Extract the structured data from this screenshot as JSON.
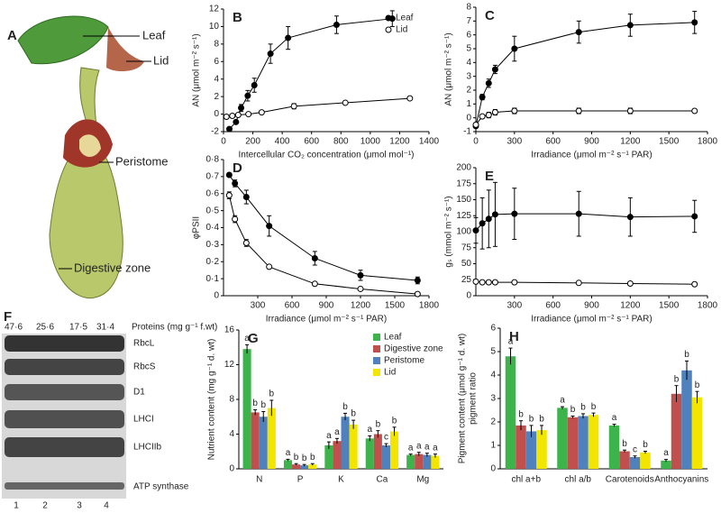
{
  "photo": {
    "panel": "A",
    "labels": [
      "Leaf",
      "Lid",
      "Peristome",
      "Digestive zone"
    ]
  },
  "blot": {
    "panel": "F",
    "loadings": [
      "47·6",
      "25·6",
      "17·5",
      "31·4"
    ],
    "loading_label": "Proteins (mg g⁻¹ f.wt)",
    "proteins": [
      "RbcL",
      "RbcS",
      "D1",
      "LHCI",
      "LHCIIb",
      "ATP synthase"
    ],
    "lanes": [
      "1",
      "2",
      "3",
      "4"
    ]
  },
  "chart_data": [
    {
      "type": "line",
      "panel": "B",
      "x_label": "Intercellular CO₂ concentration (μmol mol⁻¹)",
      "y_label": "AN (μmol m⁻² s⁻¹)",
      "xlim": [
        0,
        1400
      ],
      "xticks": [
        0,
        200,
        400,
        600,
        800,
        1000,
        1200,
        1400
      ],
      "ylim": [
        -2,
        12
      ],
      "yticks": [
        -2,
        0,
        2,
        4,
        6,
        8,
        10,
        12
      ],
      "legend": "upper right",
      "series": [
        {
          "name": "Leaf",
          "color": "#000000",
          "marker": "filled",
          "x": [
            40,
            85,
            120,
            165,
            210,
            320,
            440,
            770,
            1150
          ],
          "values": [
            -1.7,
            -0.9,
            0.7,
            2.1,
            3.3,
            6.9,
            8.7,
            10.2,
            10.9
          ],
          "errors": [
            0.1,
            0.2,
            0.4,
            0.6,
            0.8,
            1.1,
            1.3,
            1.0,
            0.9
          ]
        },
        {
          "name": "Lid",
          "color": "#000000",
          "marker": "open",
          "x": [
            20,
            60,
            100,
            170,
            260,
            480,
            830,
            1270
          ],
          "values": [
            -0.3,
            -0.2,
            -0.1,
            0,
            0.2,
            0.9,
            1.3,
            1.8
          ],
          "errors": [
            0.1,
            0.1,
            0.1,
            0.1,
            0.1,
            0.3,
            0.1,
            0.1
          ]
        }
      ]
    },
    {
      "type": "line",
      "panel": "C",
      "x_label": "Irradiance (μmol m⁻² s⁻¹ PAR)",
      "y_label": "AN (μmol m⁻² s⁻¹)",
      "xlim": [
        0,
        1800
      ],
      "xticks": [
        0,
        300,
        600,
        900,
        1200,
        1500,
        1800
      ],
      "ylim": [
        -1,
        8
      ],
      "yticks": [
        -1,
        0,
        1,
        2,
        3,
        4,
        5,
        6,
        7,
        8
      ],
      "series": [
        {
          "color": "#000000",
          "marker": "filled",
          "x": [
            0,
            50,
            100,
            150,
            300,
            800,
            1200,
            1700
          ],
          "values": [
            -0.6,
            1.5,
            2.5,
            3.5,
            5.0,
            6.2,
            6.7,
            6.9
          ],
          "errors": [
            0.1,
            0.2,
            0.3,
            0.3,
            0.9,
            0.8,
            0.8,
            0.8
          ]
        },
        {
          "color": "#000000",
          "marker": "open",
          "x": [
            0,
            50,
            100,
            150,
            300,
            800,
            1200,
            1700
          ],
          "values": [
            -0.5,
            0.1,
            0.2,
            0.4,
            0.5,
            0.5,
            0.5,
            0.5
          ],
          "errors": [
            0.1,
            0.1,
            0.2,
            0.2,
            0.2,
            0.2,
            0.2,
            0.1
          ]
        }
      ]
    },
    {
      "type": "line",
      "panel": "D",
      "x_label": "Irradiance (μmol m⁻² s⁻¹ PAR)",
      "y_label": "φPSII",
      "xlim": [
        0,
        1800
      ],
      "xticks": [
        300,
        600,
        900,
        1200,
        1500,
        1800
      ],
      "ylim": [
        0,
        0.8
      ],
      "yticks": [
        0,
        {
          "value": 0.1,
          "label": "0·1"
        },
        {
          "value": 0.2,
          "label": "0·2"
        },
        {
          "value": 0.3,
          "label": "0·3"
        },
        {
          "value": 0.4,
          "label": "0·4"
        },
        {
          "value": 0.5,
          "label": "0·5"
        },
        {
          "value": 0.6,
          "label": "0·6"
        },
        {
          "value": 0.7,
          "label": "0·7"
        },
        {
          "value": 0.8,
          "label": "0·8"
        }
      ],
      "series": [
        {
          "color": "#000000",
          "marker": "filled",
          "x": [
            50,
            100,
            200,
            400,
            800,
            1200,
            1700
          ],
          "values": [
            0.71,
            0.66,
            0.58,
            0.41,
            0.22,
            0.12,
            0.09
          ],
          "errors": [
            0.01,
            0.02,
            0.04,
            0.06,
            0.04,
            0.03,
            0.02
          ]
        },
        {
          "color": "#000000",
          "marker": "open",
          "x": [
            50,
            100,
            200,
            400,
            800,
            1200,
            1700
          ],
          "values": [
            0.59,
            0.45,
            0.31,
            0.17,
            0.07,
            0.04,
            0.01
          ],
          "errors": [
            0.02,
            0.02,
            0.02,
            0.01,
            0.01,
            0.01,
            0.01
          ]
        }
      ]
    },
    {
      "type": "line",
      "panel": "E",
      "x_label": "Irradiance (μmol m⁻² s⁻¹ PAR)",
      "y_label": "gₛ (mmol m⁻² s⁻¹)",
      "xlim": [
        0,
        1800
      ],
      "xticks": [
        300,
        600,
        900,
        1200,
        1500,
        1800
      ],
      "ylim": [
        0,
        200
      ],
      "yticks": [
        0,
        25,
        50,
        75,
        100,
        125,
        150,
        175,
        200
      ],
      "series": [
        {
          "color": "#000000",
          "marker": "filled",
          "x": [
            0,
            50,
            100,
            150,
            300,
            800,
            1200,
            1700
          ],
          "values": [
            102,
            113,
            120,
            127,
            128,
            128,
            123,
            124
          ],
          "errors": [
            20,
            40,
            45,
            50,
            40,
            35,
            30,
            25
          ]
        },
        {
          "color": "#000000",
          "marker": "open",
          "x": [
            0,
            50,
            100,
            150,
            300,
            800,
            1200,
            1700
          ],
          "values": [
            22,
            21,
            21,
            21,
            21,
            20,
            19,
            18
          ],
          "errors": [
            3,
            2,
            2,
            2,
            2,
            2,
            2,
            2
          ]
        }
      ]
    },
    {
      "type": "bar",
      "panel": "G",
      "y_label": "Nutrient content (mg g⁻¹ d. wt)",
      "categories": [
        "N",
        "P",
        "K",
        "Ca",
        "Mg"
      ],
      "ylim": [
        0,
        16
      ],
      "yticks": [
        0,
        4,
        8,
        12,
        16
      ],
      "legend": "upper right",
      "series": [
        {
          "name": "Leaf",
          "color": "#3cb44b",
          "values": [
            13.8,
            1.0,
            2.7,
            3.5,
            1.6
          ],
          "errors": [
            0.5,
            0.1,
            0.4,
            0.3,
            0.1
          ],
          "letters": [
            "a",
            "a",
            "a",
            "a",
            "a"
          ]
        },
        {
          "name": "Digestive zone",
          "color": "#c0504d",
          "values": [
            6.5,
            0.5,
            3.2,
            4.0,
            1.7
          ],
          "errors": [
            0.3,
            0.1,
            0.3,
            0.4,
            0.2
          ],
          "letters": [
            "b",
            "b",
            "a",
            "b",
            "a"
          ]
        },
        {
          "name": "Peristome",
          "color": "#4f81bd",
          "values": [
            6.0,
            0.4,
            6.0,
            2.7,
            1.6
          ],
          "errors": [
            0.6,
            0.1,
            0.4,
            0.2,
            0.2
          ],
          "letters": [
            "b",
            "b",
            "b",
            "c",
            "a"
          ]
        },
        {
          "name": "Lid",
          "color": "#f2e600",
          "values": [
            7.0,
            0.5,
            5.1,
            4.3,
            1.5
          ],
          "errors": [
            0.9,
            0.1,
            0.5,
            0.5,
            0.2
          ],
          "letters": [
            "b",
            "b",
            "b",
            "b",
            "a"
          ]
        }
      ]
    },
    {
      "type": "bar",
      "panel": "H",
      "y_label": [
        "Pigment content (μmol g⁻¹ d. wt)",
        "pigment ratio"
      ],
      "categories": [
        "chl a+b",
        "chl a/b",
        "Carotenoids",
        "Anthocyanins"
      ],
      "ylim": [
        0,
        6
      ],
      "yticks": [
        0,
        1,
        2,
        3,
        4,
        5,
        6
      ],
      "series": [
        {
          "color": "#3cb44b",
          "values": [
            4.8,
            2.6,
            1.85,
            0.35
          ],
          "errors": [
            0.35,
            0.05,
            0.05,
            0.05
          ],
          "letters": [
            "a",
            "a",
            "a",
            "a"
          ]
        },
        {
          "color": "#c0504d",
          "values": [
            1.85,
            2.2,
            0.75,
            3.2
          ],
          "errors": [
            0.2,
            0.05,
            0.05,
            0.35
          ],
          "letters": [
            "b",
            "b",
            "b",
            "b"
          ]
        },
        {
          "color": "#4f81bd",
          "values": [
            1.6,
            2.25,
            0.5,
            4.2
          ],
          "errors": [
            0.25,
            0.1,
            0.05,
            0.4
          ],
          "letters": [
            "b",
            "b",
            "c",
            "b"
          ]
        },
        {
          "color": "#f2e600",
          "values": [
            1.65,
            2.3,
            0.7,
            3.05
          ],
          "errors": [
            0.2,
            0.08,
            0.05,
            0.25
          ],
          "letters": [
            "b",
            "b",
            "b",
            "b"
          ]
        }
      ]
    }
  ]
}
